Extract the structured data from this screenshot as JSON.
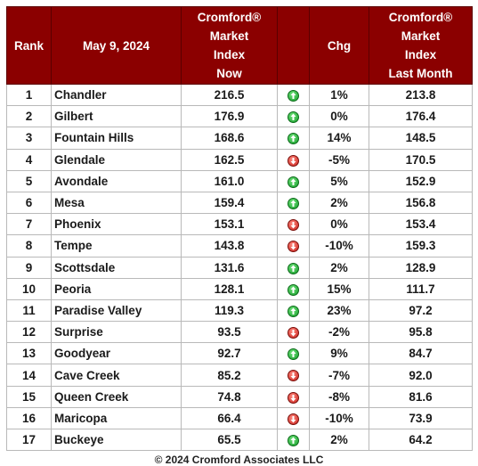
{
  "headers": {
    "rank": "Rank",
    "date": "May 9, 2024",
    "now": [
      "Cromford®",
      "Market",
      "Index",
      "Now"
    ],
    "chg": "Chg",
    "last": [
      "Cromford®",
      "Market",
      "Index",
      "Last Month"
    ]
  },
  "rows": [
    {
      "rank": "1",
      "city": "Chandler",
      "now": "216.5",
      "dir": "up",
      "chg": "1%",
      "last": "213.8"
    },
    {
      "rank": "2",
      "city": "Gilbert",
      "now": "176.9",
      "dir": "up",
      "chg": "0%",
      "last": "176.4"
    },
    {
      "rank": "3",
      "city": "Fountain Hills",
      "now": "168.6",
      "dir": "up",
      "chg": "14%",
      "last": "148.5"
    },
    {
      "rank": "4",
      "city": "Glendale",
      "now": "162.5",
      "dir": "down",
      "chg": "-5%",
      "last": "170.5"
    },
    {
      "rank": "5",
      "city": "Avondale",
      "now": "161.0",
      "dir": "up",
      "chg": "5%",
      "last": "152.9"
    },
    {
      "rank": "6",
      "city": "Mesa",
      "now": "159.4",
      "dir": "up",
      "chg": "2%",
      "last": "156.8"
    },
    {
      "rank": "7",
      "city": "Phoenix",
      "now": "153.1",
      "dir": "down",
      "chg": "0%",
      "last": "153.4"
    },
    {
      "rank": "8",
      "city": "Tempe",
      "now": "143.8",
      "dir": "down",
      "chg": "-10%",
      "last": "159.3"
    },
    {
      "rank": "9",
      "city": "Scottsdale",
      "now": "131.6",
      "dir": "up",
      "chg": "2%",
      "last": "128.9"
    },
    {
      "rank": "10",
      "city": "Peoria",
      "now": "128.1",
      "dir": "up",
      "chg": "15%",
      "last": "111.7"
    },
    {
      "rank": "11",
      "city": "Paradise Valley",
      "now": "119.3",
      "dir": "up",
      "chg": "23%",
      "last": "97.2"
    },
    {
      "rank": "12",
      "city": "Surprise",
      "now": "93.5",
      "dir": "down",
      "chg": "-2%",
      "last": "95.8"
    },
    {
      "rank": "13",
      "city": "Goodyear",
      "now": "92.7",
      "dir": "up",
      "chg": "9%",
      "last": "84.7"
    },
    {
      "rank": "14",
      "city": "Cave Creek",
      "now": "85.2",
      "dir": "down",
      "chg": "-7%",
      "last": "92.0"
    },
    {
      "rank": "15",
      "city": "Queen Creek",
      "now": "74.8",
      "dir": "down",
      "chg": "-8%",
      "last": "81.6"
    },
    {
      "rank": "16",
      "city": "Maricopa",
      "now": "66.4",
      "dir": "down",
      "chg": "-10%",
      "last": "73.9"
    },
    {
      "rank": "17",
      "city": "Buckeye",
      "now": "65.5",
      "dir": "up",
      "chg": "2%",
      "last": "64.2"
    }
  ],
  "footer": "© 2024 Cromford Associates LLC"
}
